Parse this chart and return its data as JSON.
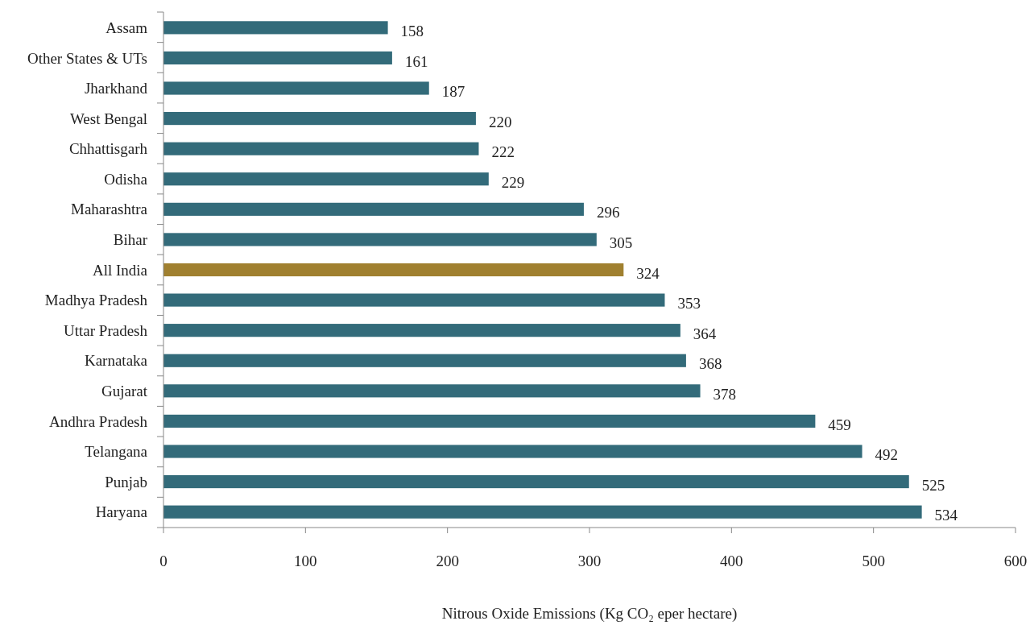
{
  "chart_data": {
    "type": "bar",
    "orientation": "horizontal",
    "xlabel": "Nitrous Oxide Emissions (Kg CO₂ eper hectare)",
    "categories": [
      "Assam",
      "Other States & UTs",
      "Jharkhand",
      "West Bengal",
      "Chhattisgarh",
      "Odisha",
      "Maharashtra",
      "Bihar",
      "All India",
      "Madhya Pradesh",
      "Uttar Pradesh",
      "Karnataka",
      "Gujarat",
      "Andhra Pradesh",
      "Telangana",
      "Punjab",
      "Haryana"
    ],
    "values": [
      158,
      161,
      187,
      220,
      222,
      229,
      296,
      305,
      324,
      353,
      364,
      368,
      378,
      459,
      492,
      525,
      534
    ],
    "colors": [
      "#336b7a",
      "#336b7a",
      "#336b7a",
      "#336b7a",
      "#336b7a",
      "#336b7a",
      "#336b7a",
      "#336b7a",
      "#a08030",
      "#336b7a",
      "#336b7a",
      "#336b7a",
      "#336b7a",
      "#336b7a",
      "#336b7a",
      "#336b7a",
      "#336b7a"
    ],
    "xlim": [
      0,
      600
    ],
    "xticks": [
      0,
      100,
      200,
      300,
      400,
      500,
      600
    ],
    "data_labels": true
  }
}
